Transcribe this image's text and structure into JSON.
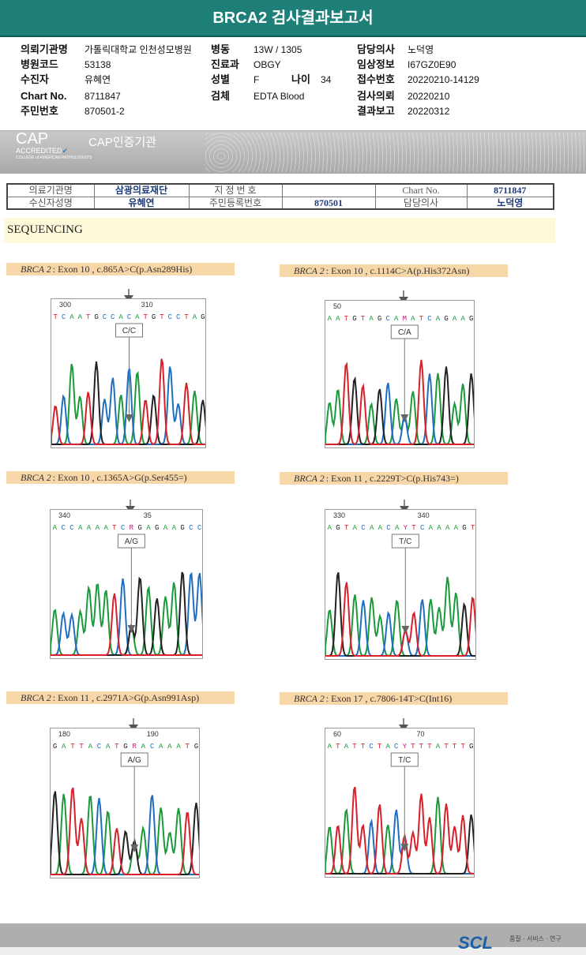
{
  "title": "BRCA2 검사결과보고서",
  "info": [
    {
      "label": "의뢰기관명",
      "value": "가톨릭대학교 인천성모병원"
    },
    {
      "label": "병원코드",
      "value": "53138"
    },
    {
      "label": "수진자",
      "value": "유혜연"
    },
    {
      "label": "Chart No.",
      "value": "8711847"
    },
    {
      "label": "주민번호",
      "value": "870501-2"
    },
    {
      "label": "병동",
      "value": "13W / 1305"
    },
    {
      "label": "진료과",
      "value": "OBGY"
    },
    {
      "label": "성별",
      "value": "F"
    },
    {
      "label": "나이",
      "value": "34"
    },
    {
      "label": "검체",
      "value": "EDTA Blood"
    },
    {
      "label": "담당의사",
      "value": "노덕영"
    },
    {
      "label": "임상정보",
      "value": "I67GZ0E90"
    },
    {
      "label": "접수번호",
      "value": "20220210-14129"
    },
    {
      "label": "검사의뢰",
      "value": "20220210"
    },
    {
      "label": "결과보고",
      "value": "20220312"
    }
  ],
  "cap": {
    "logo": "CAP",
    "accredited": "ACCREDITED",
    "college": "COLLEGE of AMERICAN PATHOLOGISTS",
    "label": "CAP인증기관"
  },
  "patient_table": {
    "r1": [
      "의료기관명",
      "삼광의료재단",
      "지 정 번 호",
      "",
      "Chart No.",
      "8711847"
    ],
    "r2": [
      "수신자성명",
      "유혜연",
      "주민등록번호",
      "870501",
      "담당의사",
      "노덕영"
    ]
  },
  "section": "SEQUENCING",
  "panels": [
    {
      "gene": "BRCA 2",
      "desc": ": Exon 10 , c.865A>C(p.Asn289His)",
      "ticks": [
        "300",
        "310"
      ],
      "seq": "TCAATGCCACATGTCCTAG",
      "call": "C/C",
      "pos": 9
    },
    {
      "gene": "BRCA 2",
      "desc": ": Exon 10 , c.1114C>A(p.His372Asn)",
      "ticks": [
        "50"
      ],
      "seq": "AATGTAGCAMATCAGAAG",
      "call": "C/A",
      "pos": 9
    },
    {
      "gene": "BRCA 2",
      "desc": ": Exon 10 , c.1365A>G(p.Ser455=)",
      "ticks": [
        "340",
        "35"
      ],
      "seq": "ACCAAAATCRGAGAAGCC",
      "call": "A/G",
      "pos": 9
    },
    {
      "gene": "BRCA 2",
      "desc": ": Exon 11 , c.2229T>C(p.His743=)",
      "ticks": [
        "330",
        "340"
      ],
      "seq": "AGTACAACAYTCAAAAGT",
      "call": "T/C",
      "pos": 9
    },
    {
      "gene": "BRCA 2",
      "desc": ": Exon 11 , c.2971A>G(p.Asn991Asp)",
      "ticks": [
        "180",
        "190"
      ],
      "seq": "GATTACATGRACAAATG",
      "call": "A/G",
      "pos": 9
    },
    {
      "gene": "BRCA 2",
      "desc": ": Exon 17 , c.7806-14T>C(Int16)",
      "ticks": [
        "60",
        "70"
      ],
      "seq": "ATATTCTACYTTTATTTG",
      "call": "T/C",
      "pos": 9
    }
  ],
  "base_colors": {
    "A": "#1a9a3a",
    "C": "#1f6fc0",
    "G": "#222222",
    "T": "#d8202a",
    "ambiguous": "#c0207a"
  },
  "footer": {
    "logo": "SCL",
    "tagline": "품질 · 서비스 · 연구"
  }
}
